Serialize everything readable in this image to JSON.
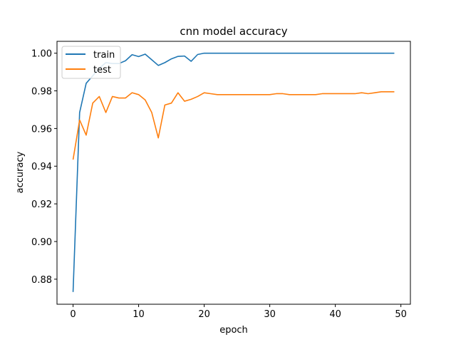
{
  "chart_data": {
    "type": "line",
    "title": "cnn model accuracy",
    "xlabel": "epoch",
    "ylabel": "accuracy",
    "xlim": [
      -2.45,
      51.45
    ],
    "ylim": [
      0.8667,
      1.0063
    ],
    "xticks": [
      0,
      10,
      20,
      30,
      40,
      50
    ],
    "yticks": [
      0.88,
      0.9,
      0.92,
      0.94,
      0.96,
      0.98,
      1.0
    ],
    "ytick_labels": [
      "0.88",
      "0.90",
      "0.92",
      "0.94",
      "0.96",
      "0.98",
      "1.00"
    ],
    "grid": false,
    "legend_position": "upper-left",
    "x": [
      0,
      1,
      2,
      3,
      4,
      5,
      6,
      7,
      8,
      9,
      10,
      11,
      12,
      13,
      14,
      15,
      16,
      17,
      18,
      19,
      20,
      21,
      22,
      23,
      24,
      25,
      26,
      27,
      28,
      29,
      30,
      31,
      32,
      33,
      34,
      35,
      36,
      37,
      38,
      39,
      40,
      41,
      42,
      43,
      44,
      45,
      46,
      47,
      48,
      49
    ],
    "series": [
      {
        "name": "train",
        "color": "#1f77b4",
        "values": [
          0.8732,
          0.9685,
          0.984,
          0.988,
          0.992,
          0.995,
          0.9945,
          0.9945,
          0.996,
          0.9992,
          0.9982,
          0.9995,
          0.9965,
          0.9935,
          0.995,
          0.997,
          0.9983,
          0.9985,
          0.9957,
          0.9993,
          1.0,
          1.0,
          1.0,
          1.0,
          1.0,
          1.0,
          1.0,
          1.0,
          1.0,
          1.0,
          1.0,
          1.0,
          1.0,
          1.0,
          1.0,
          1.0,
          1.0,
          1.0,
          1.0,
          1.0,
          1.0,
          1.0,
          1.0,
          1.0,
          1.0,
          1.0,
          1.0,
          1.0,
          1.0,
          1.0
        ]
      },
      {
        "name": "test",
        "color": "#ff7f0e",
        "values": [
          0.9435,
          0.9645,
          0.9565,
          0.9735,
          0.977,
          0.9685,
          0.977,
          0.9762,
          0.9762,
          0.979,
          0.978,
          0.9752,
          0.9685,
          0.955,
          0.9725,
          0.9735,
          0.979,
          0.9745,
          0.9755,
          0.977,
          0.979,
          0.9785,
          0.978,
          0.978,
          0.978,
          0.978,
          0.978,
          0.978,
          0.978,
          0.978,
          0.978,
          0.9785,
          0.9785,
          0.978,
          0.978,
          0.978,
          0.978,
          0.978,
          0.9785,
          0.9785,
          0.9785,
          0.9785,
          0.9785,
          0.9785,
          0.979,
          0.9785,
          0.979,
          0.9795,
          0.9795,
          0.9795
        ]
      }
    ]
  }
}
